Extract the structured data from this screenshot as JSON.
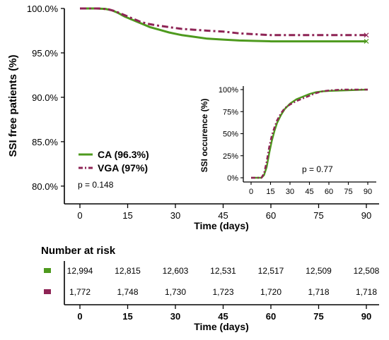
{
  "chart_data": [
    {
      "type": "line",
      "subtype": "kaplan-meier",
      "xlabel": "Time (days)",
      "ylabel": "SSI free patients (%)",
      "xlim": [
        0,
        90
      ],
      "ylim": [
        0.78,
        1.0
      ],
      "x_ticks": [
        "0",
        "15",
        "30",
        "45",
        "60",
        "75",
        "90"
      ],
      "y_ticks": [
        "80.0%",
        "85.0%",
        "90.0%",
        "95.0%",
        "100.0%"
      ],
      "grid": false,
      "legend_position": "lower-left",
      "series": [
        {
          "name": "CA (96.3%)",
          "color": "#4e9a1e",
          "style": "solid",
          "x": [
            0,
            5,
            8,
            10,
            12,
            14,
            16,
            18,
            20,
            22,
            25,
            28,
            32,
            36,
            40,
            45,
            50,
            55,
            60,
            70,
            80,
            90
          ],
          "y": [
            1.0,
            1.0,
            0.9995,
            0.998,
            0.995,
            0.991,
            0.988,
            0.985,
            0.982,
            0.979,
            0.976,
            0.973,
            0.97,
            0.968,
            0.966,
            0.965,
            0.964,
            0.9635,
            0.963,
            0.963,
            0.963,
            0.963
          ]
        },
        {
          "name": "VGA (97%)",
          "color": "#8e2455",
          "style": "dash-dot",
          "x": [
            0,
            6,
            9,
            11,
            13,
            15,
            17,
            19,
            21,
            24,
            28,
            32,
            36,
            40,
            45,
            50,
            55,
            60,
            70,
            80,
            90
          ],
          "y": [
            1.0,
            1.0,
            0.999,
            0.997,
            0.994,
            0.991,
            0.988,
            0.985,
            0.983,
            0.981,
            0.979,
            0.977,
            0.976,
            0.975,
            0.974,
            0.972,
            0.971,
            0.97,
            0.97,
            0.97,
            0.97
          ]
        }
      ],
      "annotation": "p = 0.148"
    },
    {
      "type": "line",
      "role": "inset",
      "ylabel": "SSI occurence (%)",
      "xlim": [
        0,
        90
      ],
      "ylim": [
        0,
        1
      ],
      "x_ticks": [
        "0",
        "15",
        "30",
        "45",
        "60",
        "75",
        "90"
      ],
      "y_ticks": [
        "0%",
        "25%",
        "50%",
        "75%",
        "100%"
      ],
      "series": [
        {
          "name": "CA",
          "color": "#4e9a1e",
          "x": [
            0,
            8,
            10,
            12,
            14,
            16,
            18,
            20,
            23,
            26,
            30,
            35,
            40,
            45,
            50,
            55,
            60,
            70,
            80,
            90
          ],
          "y": [
            0,
            0,
            0.03,
            0.12,
            0.28,
            0.42,
            0.53,
            0.62,
            0.71,
            0.78,
            0.84,
            0.89,
            0.92,
            0.95,
            0.97,
            0.98,
            0.985,
            0.99,
            0.995,
            1.0
          ]
        },
        {
          "name": "VGA",
          "color": "#8e2455",
          "x": [
            0,
            8,
            10,
            12,
            14,
            16,
            18,
            20,
            23,
            26,
            30,
            35,
            40,
            45,
            50,
            55,
            60,
            70,
            80,
            90
          ],
          "y": [
            0,
            0,
            0.05,
            0.18,
            0.35,
            0.48,
            0.57,
            0.65,
            0.73,
            0.79,
            0.83,
            0.87,
            0.9,
            0.93,
            0.96,
            0.98,
            0.99,
            1.0,
            1.0,
            1.0
          ]
        }
      ],
      "annotation": "p = 0.77"
    }
  ],
  "risk_table": {
    "title": "Number at risk",
    "xlabel": "Time (days)",
    "x_ticks": [
      "0",
      "15",
      "30",
      "45",
      "60",
      "75",
      "90"
    ],
    "rows": [
      {
        "color": "#4e9a1e",
        "values": [
          "12,994",
          "12,815",
          "12,603",
          "12,531",
          "12,517",
          "12,509",
          "12,508"
        ]
      },
      {
        "color": "#8e2455",
        "values": [
          "1,772",
          "1,748",
          "1,730",
          "1,723",
          "1,720",
          "1,718",
          "1,718"
        ]
      }
    ]
  }
}
